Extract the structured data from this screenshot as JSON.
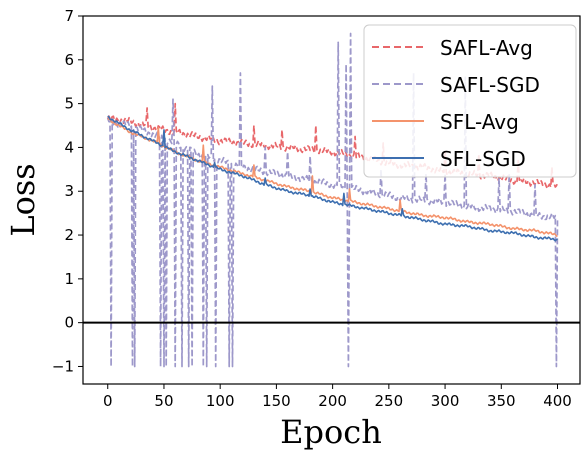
{
  "chart_data": {
    "type": "line",
    "xlabel": "Epoch",
    "ylabel": "Loss",
    "xlim": [
      -22,
      420
    ],
    "ylim": [
      -1.4,
      7.0
    ],
    "x_ticks": [
      0,
      50,
      100,
      150,
      200,
      250,
      300,
      350,
      400
    ],
    "y_ticks": [
      -1,
      0,
      1,
      2,
      3,
      4,
      5,
      6,
      7
    ],
    "x_tick_labels": [
      "0",
      "50",
      "100",
      "150",
      "200",
      "250",
      "300",
      "350",
      "400"
    ],
    "y_tick_labels": [
      "−1",
      "0",
      "1",
      "2",
      "3",
      "4",
      "5",
      "6",
      "7"
    ],
    "grid": false,
    "legend_position": "top-right",
    "hline": {
      "y": 0,
      "color": "#000000"
    },
    "series": [
      {
        "name": "SAFL-Avg",
        "color": "#e8676a",
        "dash": "dashed",
        "x": [
          0,
          20,
          40,
          60,
          80,
          100,
          120,
          140,
          160,
          180,
          200,
          220,
          240,
          260,
          280,
          300,
          320,
          340,
          360,
          380,
          400
        ],
        "y": [
          4.65,
          4.6,
          4.45,
          4.35,
          4.25,
          4.15,
          4.1,
          4.05,
          4.0,
          3.95,
          3.9,
          3.8,
          3.7,
          3.6,
          3.55,
          3.45,
          3.4,
          3.35,
          3.25,
          3.2,
          3.1
        ],
        "spikes": [
          {
            "x": 35,
            "y": 4.9
          },
          {
            "x": 60,
            "y": 5.0
          },
          {
            "x": 130,
            "y": 4.5
          },
          {
            "x": 155,
            "y": 4.4
          },
          {
            "x": 185,
            "y": 4.5
          },
          {
            "x": 220,
            "y": 4.25
          },
          {
            "x": 245,
            "y": 4.1
          },
          {
            "x": 300,
            "y": 3.95
          },
          {
            "x": 330,
            "y": 3.85
          },
          {
            "x": 365,
            "y": 3.7
          },
          {
            "x": 395,
            "y": 3.55
          }
        ]
      },
      {
        "name": "SAFL-SGD",
        "color": "#9d98ca",
        "dash": "dashed",
        "x": [
          0,
          20,
          40,
          60,
          80,
          100,
          120,
          140,
          160,
          180,
          200,
          220,
          240,
          260,
          280,
          300,
          320,
          340,
          360,
          380,
          400
        ],
        "y": [
          4.6,
          4.5,
          4.3,
          4.1,
          3.85,
          3.7,
          3.55,
          3.45,
          3.35,
          3.25,
          3.15,
          3.05,
          2.95,
          2.85,
          2.8,
          2.75,
          2.65,
          2.6,
          2.55,
          2.45,
          2.4
        ],
        "spikes": [
          {
            "x": 3,
            "y": -1.0
          },
          {
            "x": 22,
            "y": -1.0
          },
          {
            "x": 24,
            "y": -1.0
          },
          {
            "x": 47,
            "y": -1.0
          },
          {
            "x": 50,
            "y": -1.0
          },
          {
            "x": 52,
            "y": -1.0
          },
          {
            "x": 58,
            "y": 5.1
          },
          {
            "x": 60,
            "y": -1.0
          },
          {
            "x": 66,
            "y": -1.0
          },
          {
            "x": 72,
            "y": -1.0
          },
          {
            "x": 75,
            "y": -1.0
          },
          {
            "x": 85,
            "y": -1.0
          },
          {
            "x": 88,
            "y": -1.0
          },
          {
            "x": 93,
            "y": 5.4
          },
          {
            "x": 96,
            "y": -1.0
          },
          {
            "x": 108,
            "y": -1.0
          },
          {
            "x": 111,
            "y": -1.0
          },
          {
            "x": 118,
            "y": 5.7
          },
          {
            "x": 140,
            "y": 4.0
          },
          {
            "x": 160,
            "y": 3.9
          },
          {
            "x": 180,
            "y": 3.8
          },
          {
            "x": 205,
            "y": 6.4
          },
          {
            "x": 212,
            "y": 5.9
          },
          {
            "x": 214,
            "y": -1.0
          },
          {
            "x": 216,
            "y": 6.6
          },
          {
            "x": 243,
            "y": 3.5
          },
          {
            "x": 272,
            "y": 5.7
          },
          {
            "x": 283,
            "y": 3.4
          },
          {
            "x": 300,
            "y": 3.4
          },
          {
            "x": 318,
            "y": 5.6
          },
          {
            "x": 348,
            "y": 3.3
          },
          {
            "x": 357,
            "y": 3.4
          },
          {
            "x": 380,
            "y": 3.15
          },
          {
            "x": 399,
            "y": -1.0
          }
        ]
      },
      {
        "name": "SFL-Avg",
        "color": "#f4936c",
        "dash": "solid",
        "x": [
          0,
          20,
          40,
          60,
          80,
          100,
          120,
          140,
          160,
          180,
          200,
          220,
          240,
          260,
          280,
          300,
          320,
          340,
          360,
          380,
          400
        ],
        "y": [
          4.65,
          4.35,
          4.15,
          3.9,
          3.7,
          3.55,
          3.4,
          3.25,
          3.1,
          3.0,
          2.85,
          2.75,
          2.65,
          2.55,
          2.45,
          2.4,
          2.3,
          2.25,
          2.15,
          2.1,
          2.0
        ],
        "spikes": [
          {
            "x": 45,
            "y": 4.45
          },
          {
            "x": 85,
            "y": 4.05
          },
          {
            "x": 130,
            "y": 3.6
          },
          {
            "x": 182,
            "y": 3.35
          },
          {
            "x": 215,
            "y": 3.05
          },
          {
            "x": 260,
            "y": 2.8
          }
        ]
      },
      {
        "name": "SFL-SGD",
        "color": "#3d6fb0",
        "dash": "solid",
        "x": [
          0,
          20,
          40,
          60,
          80,
          100,
          120,
          140,
          160,
          180,
          200,
          220,
          240,
          260,
          280,
          300,
          320,
          340,
          360,
          380,
          400
        ],
        "y": [
          4.7,
          4.4,
          4.15,
          3.9,
          3.7,
          3.5,
          3.35,
          3.15,
          3.0,
          2.9,
          2.75,
          2.65,
          2.55,
          2.45,
          2.35,
          2.25,
          2.2,
          2.1,
          2.05,
          1.95,
          1.9
        ],
        "spikes": [
          {
            "x": 50,
            "y": 4.4
          },
          {
            "x": 95,
            "y": 3.65
          },
          {
            "x": 140,
            "y": 3.3
          },
          {
            "x": 180,
            "y": 3.05
          },
          {
            "x": 210,
            "y": 2.95
          },
          {
            "x": 262,
            "y": 2.6
          }
        ]
      }
    ]
  }
}
